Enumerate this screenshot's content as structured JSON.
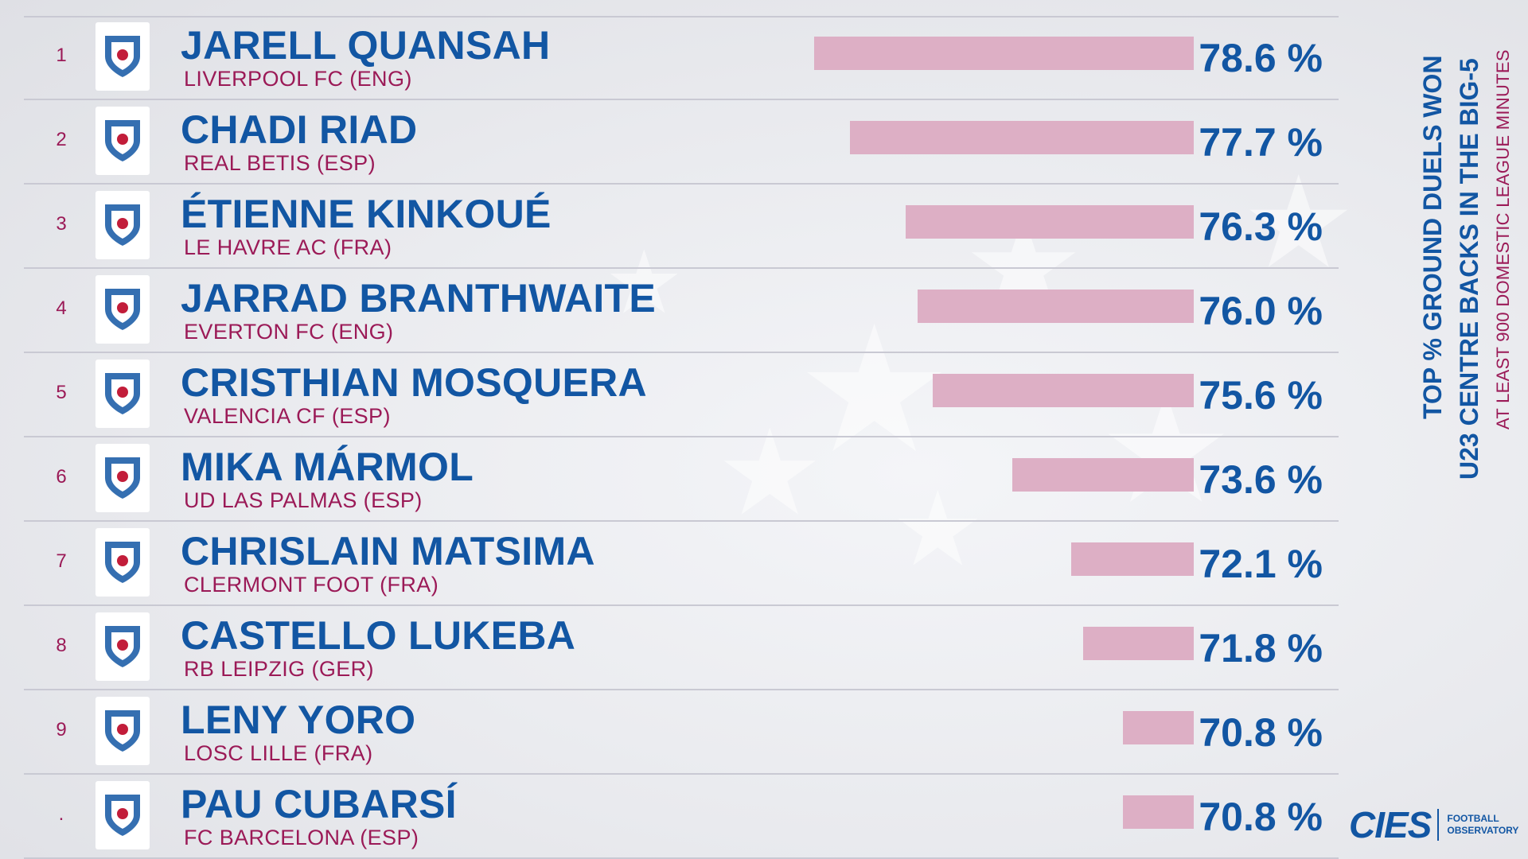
{
  "side_title": {
    "line1": "TOP % GROUND DUELS WON",
    "line2": "U23 CENTRE BACKS IN THE BIG-5",
    "subtitle": "AT LEAST 900 DOMESTIC LEAGUE MINUTES"
  },
  "footer": {
    "brand": "CIES",
    "tagline_1": "FOOTBALL",
    "tagline_2": "OBSERVATORY"
  },
  "colors": {
    "name_blue": "#1256a3",
    "club_crimson": "#9b1a57",
    "bar_pink": "#ddafc5"
  },
  "chart_data": {
    "type": "bar",
    "orientation": "horizontal",
    "value_unit": "%",
    "rows": [
      {
        "rank": "1",
        "player": "JARELL QUANSAH",
        "club": "LIVERPOOL FC (ENG)",
        "value": 78.6,
        "label": "78.6 %",
        "badge": "liverpool-crest-icon"
      },
      {
        "rank": "2",
        "player": "CHADI RIAD",
        "club": "REAL BETIS (ESP)",
        "value": 77.7,
        "label": "77.7 %",
        "badge": "real-betis-crest-icon"
      },
      {
        "rank": "3",
        "player": "ÉTIENNE KINKOUÉ",
        "club": "LE HAVRE AC (FRA)",
        "value": 76.3,
        "label": "76.3 %",
        "badge": "le-havre-crest-icon"
      },
      {
        "rank": "4",
        "player": "JARRAD BRANTHWAITE",
        "club": "EVERTON FC (ENG)",
        "value": 76.0,
        "label": "76.0 %",
        "badge": "everton-crest-icon"
      },
      {
        "rank": "5",
        "player": "CRISTHIAN MOSQUERA",
        "club": "VALENCIA CF (ESP)",
        "value": 75.6,
        "label": "75.6 %",
        "badge": "valencia-crest-icon"
      },
      {
        "rank": "6",
        "player": "MIKA MÁRMOL",
        "club": "UD LAS PALMAS (ESP)",
        "value": 73.6,
        "label": "73.6 %",
        "badge": "las-palmas-crest-icon"
      },
      {
        "rank": "7",
        "player": "CHRISLAIN MATSIMA",
        "club": "CLERMONT FOOT (FRA)",
        "value": 72.1,
        "label": "72.1 %",
        "badge": "clermont-crest-icon"
      },
      {
        "rank": "8",
        "player": "CASTELLO LUKEBA",
        "club": "RB LEIPZIG (GER)",
        "value": 71.8,
        "label": "71.8 %",
        "badge": "rb-leipzig-crest-icon"
      },
      {
        "rank": "9",
        "player": "LENY YORO",
        "club": "LOSC LILLE (FRA)",
        "value": 70.8,
        "label": "70.8 %",
        "badge": "losc-lille-crest-icon"
      },
      {
        "rank": ".",
        "player": "PAU CUBARSÍ",
        "club": "FC BARCELONA (ESP)",
        "value": 70.8,
        "label": "70.8 %",
        "badge": "barcelona-crest-icon"
      }
    ]
  }
}
